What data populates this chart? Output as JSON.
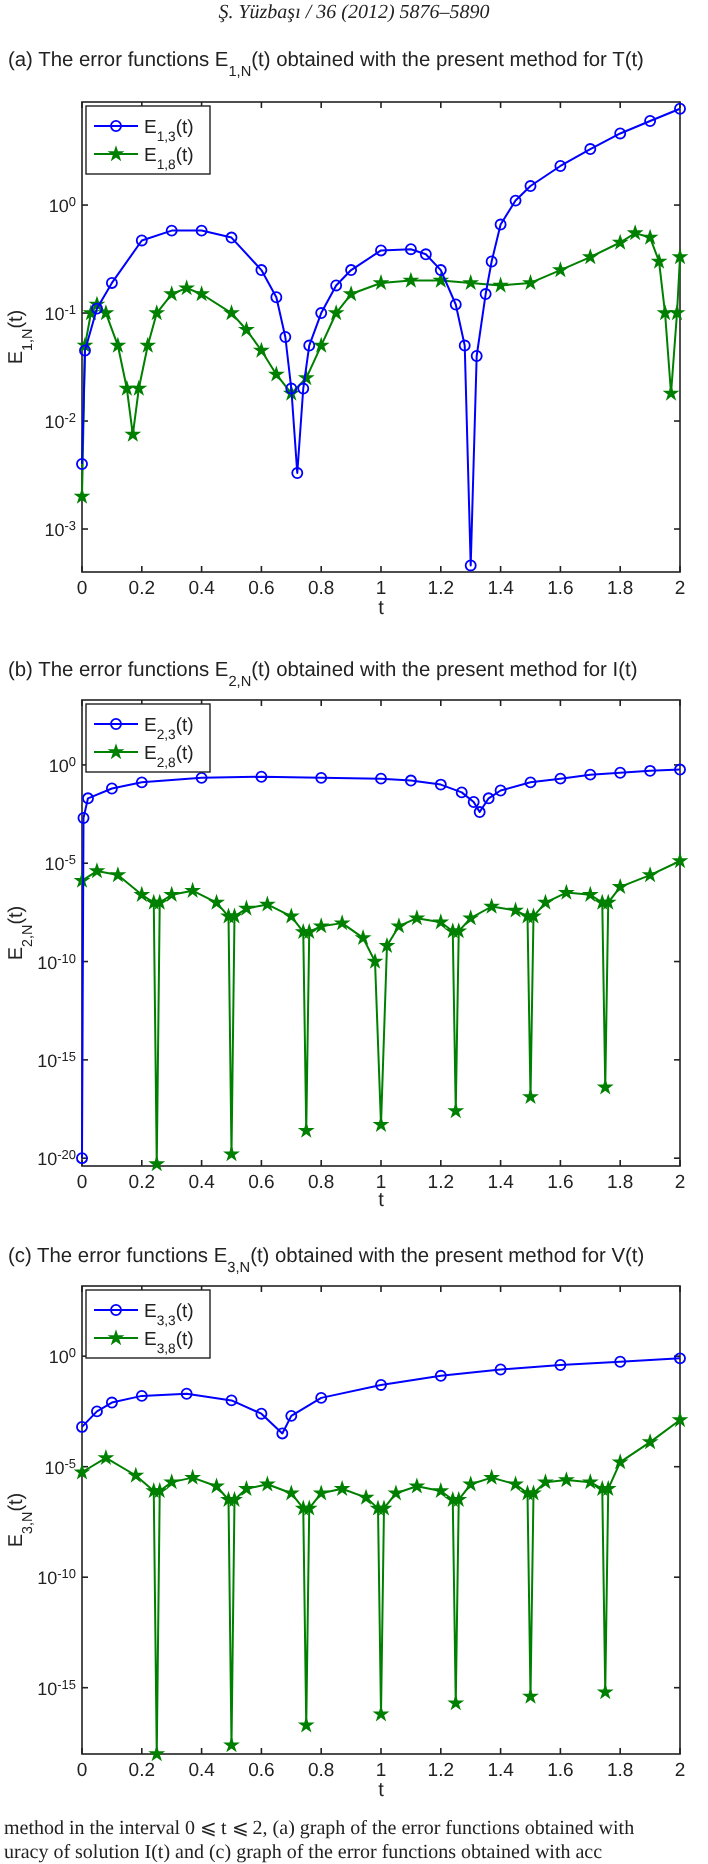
{
  "chart_data": [
    {
      "type": "line",
      "title": "(a)  The error functions E$_{1,N}$(t) obtained with the present method for T(t)",
      "xlabel": "t",
      "ylabel": "E$_{1,N}$(t)",
      "xlim": [
        0,
        2
      ],
      "xticks": [
        0,
        0.2,
        0.4,
        0.6,
        0.8,
        1,
        1.2,
        1.4,
        1.6,
        1.8,
        2
      ],
      "ylim": [
        0.0004,
        9
      ],
      "log": "y",
      "yticks": [
        {
          "value": 0.001,
          "label": "10$^{-3}$"
        },
        {
          "value": 0.01,
          "label": "10$^{-2}$"
        },
        {
          "value": 0.1,
          "label": "10$^{-1}$"
        },
        {
          "value": 1,
          "label": "10$^{0}$"
        }
      ],
      "legend": "top left",
      "annotations": [
        "Ş. Yüzbaşı / 36 (2012) 5876–5890"
      ],
      "series": [
        {
          "name": "E$_{1,3}$(t)",
          "color": "#0000ff",
          "marker": "circle",
          "x": [
            0,
            0.01,
            0.05,
            0.1,
            0.2,
            0.3,
            0.4,
            0.5,
            0.6,
            0.65,
            0.68,
            0.7,
            0.72,
            0.74,
            0.76,
            0.8,
            0.85,
            0.9,
            1.0,
            1.1,
            1.15,
            1.2,
            1.25,
            1.28,
            1.3,
            1.32,
            1.35,
            1.37,
            1.4,
            1.45,
            1.5,
            1.6,
            1.7,
            1.8,
            1.9,
            2.0
          ],
          "values": [
            0.004,
            0.045,
            0.11,
            0.19,
            0.47,
            0.58,
            0.58,
            0.5,
            0.25,
            0.14,
            0.06,
            0.02,
            0.0033,
            0.02,
            0.05,
            0.1,
            0.18,
            0.25,
            0.38,
            0.39,
            0.35,
            0.25,
            0.12,
            0.05,
            0.00046,
            0.04,
            0.15,
            0.3,
            0.66,
            1.1,
            1.5,
            2.3,
            3.3,
            4.6,
            6,
            7.8
          ]
        },
        {
          "name": "E$_{1,8}$(t)",
          "color": "#008000",
          "marker": "star",
          "x": [
            0,
            0.01,
            0.03,
            0.05,
            0.08,
            0.12,
            0.15,
            0.17,
            0.19,
            0.22,
            0.25,
            0.3,
            0.35,
            0.4,
            0.5,
            0.55,
            0.6,
            0.65,
            0.7,
            0.75,
            0.8,
            0.85,
            0.9,
            1.0,
            1.1,
            1.2,
            1.3,
            1.4,
            1.5,
            1.6,
            1.7,
            1.8,
            1.85,
            1.9,
            1.93,
            1.95,
            1.97,
            1.99,
            2.0
          ],
          "values": [
            0.002,
            0.05,
            0.1,
            0.12,
            0.1,
            0.05,
            0.02,
            0.0075,
            0.02,
            0.05,
            0.1,
            0.15,
            0.17,
            0.15,
            0.1,
            0.07,
            0.045,
            0.027,
            0.018,
            0.025,
            0.05,
            0.1,
            0.15,
            0.19,
            0.2,
            0.2,
            0.19,
            0.18,
            0.19,
            0.25,
            0.33,
            0.45,
            0.55,
            0.5,
            0.3,
            0.1,
            0.018,
            0.1,
            0.33
          ]
        }
      ]
    },
    {
      "type": "line",
      "title": "(b)  The error functions E$_{2,N}$(t) obtained with the present method for I(t)",
      "xlabel": "t",
      "ylabel": "E$_{2,N}$(t)",
      "xlim": [
        0,
        2
      ],
      "xticks": [
        0,
        0.2,
        0.4,
        0.6,
        0.8,
        1,
        1.2,
        1.4,
        1.6,
        1.8,
        2
      ],
      "ylim": [
        4e-21,
        2000
      ],
      "log": "y",
      "yticks": [
        {
          "value": 1e-20,
          "label": "10$^{-20}$"
        },
        {
          "value": 1e-15,
          "label": "10$^{-15}$"
        },
        {
          "value": 1e-10,
          "label": "10$^{-10}$"
        },
        {
          "value": 1e-05,
          "label": "10$^{-5}$"
        },
        {
          "value": 1,
          "label": "10$^{0}$"
        }
      ],
      "legend": "top left",
      "series": [
        {
          "name": "E$_{2,3}$(t)",
          "color": "#0000ff",
          "marker": "circle",
          "x": [
            0,
            0.005,
            0.02,
            0.1,
            0.2,
            0.4,
            0.6,
            0.8,
            1.0,
            1.1,
            1.2,
            1.27,
            1.31,
            1.33,
            1.36,
            1.4,
            1.5,
            1.6,
            1.7,
            1.8,
            1.9,
            2.0
          ],
          "values": [
            1e-20,
            0.002,
            0.02,
            0.063,
            0.13,
            0.22,
            0.25,
            0.22,
            0.2,
            0.16,
            0.1,
            0.04,
            0.013,
            0.004,
            0.02,
            0.05,
            0.13,
            0.2,
            0.32,
            0.4,
            0.5,
            0.58
          ]
        },
        {
          "name": "E$_{2,8}$(t)",
          "color": "#008000",
          "marker": "star",
          "x": [
            0,
            0.05,
            0.12,
            0.2,
            0.24,
            0.25,
            0.26,
            0.3,
            0.37,
            0.45,
            0.49,
            0.5,
            0.51,
            0.55,
            0.62,
            0.7,
            0.74,
            0.75,
            0.76,
            0.8,
            0.87,
            0.94,
            0.98,
            1.0,
            1.02,
            1.06,
            1.12,
            1.2,
            1.24,
            1.25,
            1.26,
            1.3,
            1.37,
            1.45,
            1.49,
            1.5,
            1.51,
            1.55,
            1.62,
            1.7,
            1.74,
            1.75,
            1.76,
            1.8,
            1.9,
            2.0
          ],
          "values": [
            1.3e-06,
            4e-06,
            2.5e-06,
            2.5e-07,
            1e-07,
            5e-21,
            1e-07,
            2.5e-07,
            4e-07,
            1e-07,
            2e-08,
            1.6e-20,
            2e-08,
            5e-08,
            8e-08,
            2e-08,
            3.2e-09,
            2.5e-19,
            3.2e-09,
            6.3e-09,
            9e-09,
            1.6e-09,
            1e-10,
            5e-19,
            6.3e-10,
            6.3e-09,
            1.6e-08,
            1e-08,
            3.5e-09,
            2.5e-18,
            3.5e-09,
            1.6e-08,
            6.3e-08,
            4e-08,
            2e-08,
            1.3e-17,
            2e-08,
            1e-07,
            3.2e-07,
            2.5e-07,
            1e-07,
            4e-17,
            1e-07,
            6.3e-07,
            2.5e-06,
            1.3e-05
          ]
        }
      ]
    },
    {
      "type": "line",
      "title": "(c)  The error functions E$_{3,N}$(t) obtained with the present method for V(t)",
      "xlabel": "t",
      "ylabel": "E$_{3,N}$(t)",
      "xlim": [
        0,
        2
      ],
      "xticks": [
        0,
        0.2,
        0.4,
        0.6,
        0.8,
        1,
        1.2,
        1.4,
        1.6,
        1.8,
        2
      ],
      "ylim": [
        1e-18,
        1500
      ],
      "log": "y",
      "yticks": [
        {
          "value": 1e-15,
          "label": "10$^{-15}$"
        },
        {
          "value": 1e-10,
          "label": "10$^{-10}$"
        },
        {
          "value": 1e-05,
          "label": "10$^{-5}$"
        },
        {
          "value": 1,
          "label": "10$^{0}$"
        }
      ],
      "legend": "top left",
      "annotations": [
        "method in the interval 0 ⩽ t ⩽ 2, (a) graph of the error functions obtained with",
        "uracy of solution I(t) and (c) graph of the error functions obtained with acc"
      ],
      "series": [
        {
          "name": "E$_{3,3}$(t)",
          "color": "#0000ff",
          "marker": "circle",
          "x": [
            0,
            0.05,
            0.1,
            0.2,
            0.35,
            0.5,
            0.6,
            0.67,
            0.7,
            0.8,
            1.0,
            1.2,
            1.4,
            1.6,
            1.8,
            2.0
          ],
          "values": [
            0.00063,
            0.0032,
            0.008,
            0.016,
            0.02,
            0.01,
            0.0025,
            0.00032,
            0.002,
            0.013,
            0.05,
            0.13,
            0.25,
            0.4,
            0.56,
            0.8
          ]
        },
        {
          "name": "E$_{3,8}$(t)",
          "color": "#008000",
          "marker": "star",
          "x": [
            0,
            0.08,
            0.18,
            0.24,
            0.25,
            0.26,
            0.3,
            0.37,
            0.45,
            0.49,
            0.5,
            0.51,
            0.55,
            0.62,
            0.7,
            0.74,
            0.75,
            0.76,
            0.8,
            0.87,
            0.95,
            0.99,
            1.0,
            1.01,
            1.05,
            1.12,
            1.2,
            1.24,
            1.25,
            1.26,
            1.3,
            1.37,
            1.45,
            1.49,
            1.5,
            1.51,
            1.55,
            1.62,
            1.7,
            1.74,
            1.75,
            1.76,
            1.8,
            1.9,
            2.0
          ],
          "values": [
            5.6e-06,
            2.5e-05,
            4e-06,
            8e-07,
            1e-18,
            8e-07,
            2e-06,
            3.2e-06,
            1.3e-06,
            3.2e-07,
            2.5e-18,
            3.2e-07,
            1e-06,
            1.6e-06,
            6.3e-07,
            1.3e-07,
            2e-17,
            1.3e-07,
            6.3e-07,
            1e-06,
            4e-07,
            1.3e-07,
            6.3e-17,
            1.3e-07,
            6.3e-07,
            1.3e-06,
            8e-07,
            3.2e-07,
            2e-16,
            3.2e-07,
            1.6e-06,
            3.2e-06,
            1.6e-06,
            6.3e-07,
            4e-16,
            6.3e-07,
            2e-06,
            2.5e-06,
            2e-06,
            1e-06,
            6.3e-16,
            1e-06,
            1.6e-05,
            0.00013,
            0.0013
          ]
        }
      ]
    }
  ]
}
